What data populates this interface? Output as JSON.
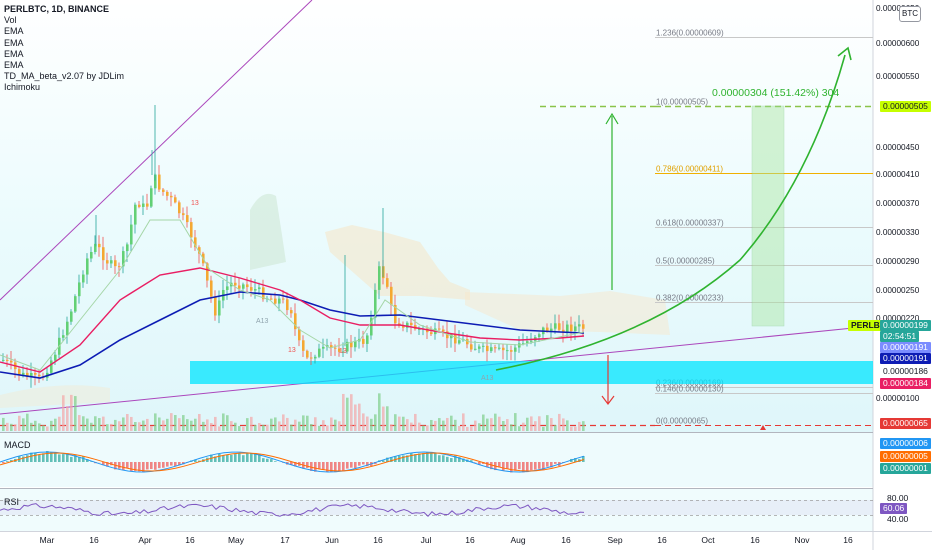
{
  "legend": {
    "title": "PERLBTC, 1D, BINANCE",
    "indicators": [
      "Vol",
      "EMA",
      "EMA",
      "EMA",
      "EMA",
      "TD_MA_beta_v2.07 by JDLim",
      "Ichimoku"
    ]
  },
  "badge": "BTC",
  "macd_label": "MACD",
  "rsi_label": "RSI",
  "target_annotation": "0.00000304 (151.42%) 304",
  "candle_marks": [
    "13",
    "A13",
    "A13",
    "13",
    "13"
  ],
  "price_tags": {
    "symbol": "PERLBTC",
    "current": "0.00000199",
    "countdown": "02:54:51",
    "tag_191a": "0.00000191",
    "tag_191b": "0.00000191",
    "tag_186": "0.00000186",
    "tag_184": "0.00000184",
    "tag_505": "0.00000505",
    "tag_065": "0.00000065"
  },
  "macd_tags": [
    "0.00000006",
    "0.00000005",
    "0.00000001"
  ],
  "rsi_tags": {
    "top": "80.00",
    "value": "60.06",
    "bottom": "40.00"
  },
  "colors": {
    "up": "#26a69a",
    "down": "#ef5350",
    "fib_green": "#8bc34a",
    "cyan_box": "#00e5ff",
    "ema_blue": "#0d1cb4",
    "ema_pink": "#e91e63",
    "trend_purple": "#ab47bc",
    "arrow_green": "#2fb32f"
  },
  "chart_data": {
    "type": "candlestick",
    "symbol": "PERLBTC",
    "interval": "1D",
    "exchange": "BINANCE",
    "x_tick_labels": [
      "Mar",
      "16",
      "Apr",
      "16",
      "May",
      "17",
      "Jun",
      "16",
      "Jul",
      "16",
      "Aug",
      "16",
      "Sep",
      "16",
      "Oct",
      "16",
      "Nov",
      "16"
    ],
    "y_tick_labels": [
      "0.00000650",
      "0.00000600",
      "0.00000550",
      "0.00000450",
      "0.00000410",
      "0.00000370",
      "0.00000330",
      "0.00000290",
      "0.00000250",
      "0.00000220",
      "0.00000100"
    ],
    "y_range": [
      4e-07,
      6.7e-06
    ],
    "fib_levels": [
      {
        "label": "1.236(0.00000609)",
        "value": 6.09e-06
      },
      {
        "label": "1(0.00000505)",
        "value": 5.05e-06
      },
      {
        "label": "0.786(0.00000411)",
        "value": 4.11e-06
      },
      {
        "label": "0.618(0.00000337)",
        "value": 3.37e-06
      },
      {
        "label": "0.5(0.00000285)",
        "value": 2.85e-06
      },
      {
        "label": "0.382(0.00000233)",
        "value": 2.33e-06
      },
      {
        "label": "0.236(0.00000169)",
        "value": 1.69e-06
      },
      {
        "label": "0.146(0.00000130)",
        "value": 1.3e-06
      },
      {
        "label": "0(0.00000065)",
        "value": 6.5e-07
      }
    ],
    "support_zone": [
      1.1e-06,
      1.6e-06
    ],
    "projection_target": 5.05e-06,
    "current_price": 1.99e-06,
    "rsi_value": 60.06,
    "rsi_bands": [
      40,
      80
    ]
  }
}
